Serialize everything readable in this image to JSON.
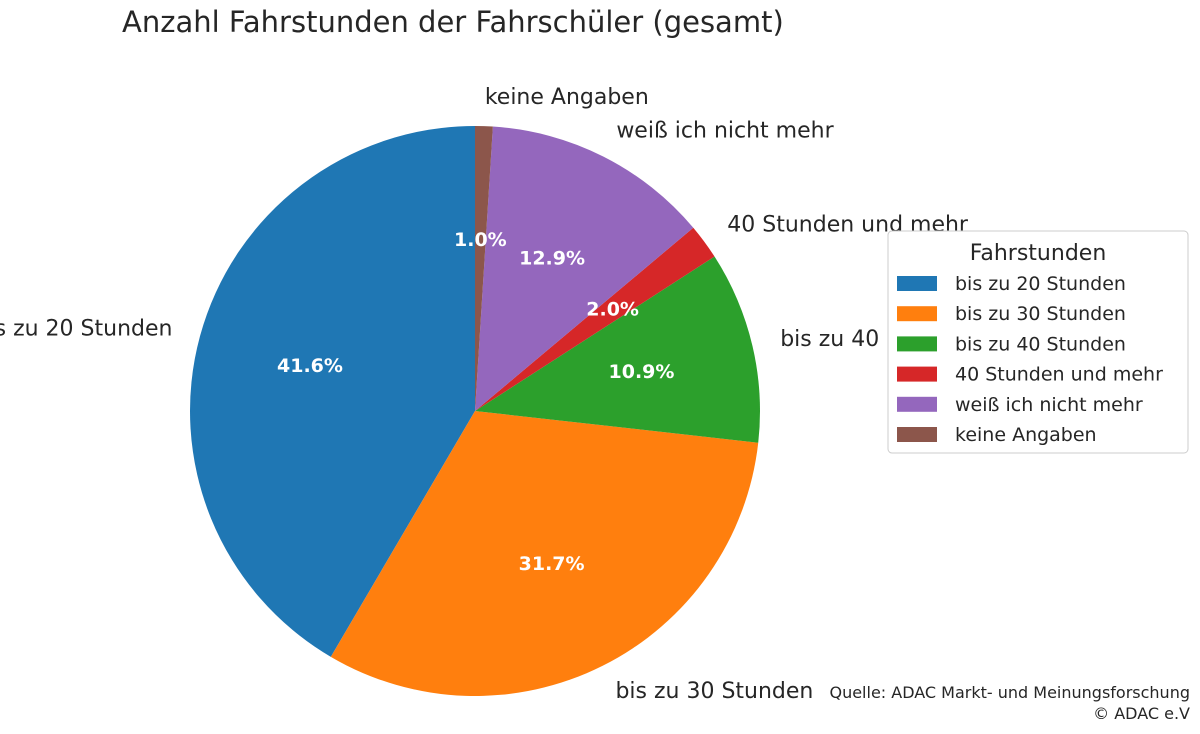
{
  "chart_data": {
    "type": "pie",
    "title": "Anzahl Fahrstunden der Fahrschüler (gesamt)",
    "legend": {
      "title": "Fahrstunden",
      "placement": "right"
    },
    "start_angle_deg": 90,
    "direction": "counterclockwise",
    "slices": [
      {
        "label": "bis zu 20 Stunden",
        "value": 41.6,
        "pct_label": "41.6%",
        "color": "#1f77b4"
      },
      {
        "label": "bis zu 30 Stunden",
        "value": 31.7,
        "pct_label": "31.7%",
        "color": "#ff7f0e"
      },
      {
        "label": "bis zu 40 Stunden",
        "value": 10.9,
        "pct_label": "10.9%",
        "color": "#2ca02c"
      },
      {
        "label": "40 Stunden und mehr",
        "value": 2.0,
        "pct_label": "2.0%",
        "color": "#d62728"
      },
      {
        "label": "weiß ich nicht mehr",
        "value": 12.9,
        "pct_label": "12.9%",
        "color": "#9467bd"
      },
      {
        "label": "keine Angaben",
        "value": 1.0,
        "pct_label": "1.0%",
        "color": "#8c564b"
      }
    ]
  },
  "source": {
    "line1": "Quelle: ADAC Markt- und Meinungsforschung",
    "line2": "© ADAC e.V"
  }
}
